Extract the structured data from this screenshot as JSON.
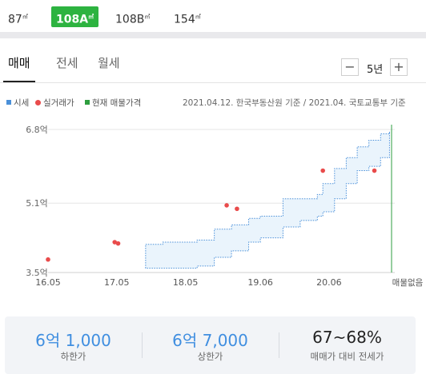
{
  "size_tabs": [
    {
      "label": "87",
      "unit": "㎡"
    },
    {
      "label": "108A",
      "unit": "㎡"
    },
    {
      "label": "108B",
      "unit": "㎡"
    },
    {
      "label": "154",
      "unit": "㎡"
    }
  ],
  "active_size": "108A",
  "deal_tabs": [
    "매매",
    "전세",
    "월세"
  ],
  "active_deal": "매매",
  "period": {
    "minus": "−",
    "value": "5년",
    "plus": "+"
  },
  "legend": {
    "estimate": "시세",
    "actual": "실거래가",
    "current": "현재 매물가격"
  },
  "source_note": "2021.04.12. 한국부동산원 기준 / 2021.04. 국토교통부 기준",
  "colors": {
    "accent_green": "#2db340",
    "estimate_blue": "#4a90d9",
    "actual_red": "#e94b4b",
    "current_green": "#2e9e3f",
    "summary_blue": "#3f8ee0"
  },
  "chart_data": {
    "type": "area",
    "x_tick_labels": [
      "16.05",
      "17.05",
      "18.05",
      "19.06",
      "20.06"
    ],
    "x_ticks": [
      2016.33,
      2017.33,
      2018.33,
      2019.42,
      2020.42
    ],
    "xlim": [
      2016.33,
      2021.33
    ],
    "y_tick_labels": [
      "6.8억",
      "5.1억",
      "3.5억"
    ],
    "y_ticks": [
      6.8,
      5.1,
      3.5
    ],
    "ylim": [
      3.5,
      6.8
    ],
    "end_label": "매물없음",
    "estimate_band": {
      "x": [
        2017.75,
        2018.0,
        2018.5,
        2018.75,
        2019.0,
        2019.25,
        2019.42,
        2019.75,
        2020.0,
        2020.25,
        2020.33,
        2020.5,
        2020.67,
        2020.83,
        2021.0,
        2021.17,
        2021.3
      ],
      "upper": [
        4.15,
        4.2,
        4.25,
        4.5,
        4.6,
        4.75,
        4.8,
        5.2,
        5.2,
        5.3,
        5.55,
        5.9,
        6.15,
        6.4,
        6.55,
        6.7,
        6.75
      ],
      "lower": [
        3.6,
        3.6,
        3.65,
        3.85,
        4.0,
        4.2,
        4.3,
        4.55,
        4.7,
        4.8,
        4.9,
        5.2,
        5.55,
        5.85,
        5.95,
        6.15,
        6.3
      ]
    },
    "actual_trades": [
      {
        "x": 2016.33,
        "y": 3.8
      },
      {
        "x": 2017.3,
        "y": 4.2
      },
      {
        "x": 2017.35,
        "y": 4.17
      },
      {
        "x": 2018.93,
        "y": 5.05
      },
      {
        "x": 2019.08,
        "y": 4.97
      },
      {
        "x": 2020.33,
        "y": 5.85
      },
      {
        "x": 2021.08,
        "y": 5.85
      }
    ],
    "current_listing_x": 2021.33
  },
  "summary": [
    {
      "value": "6억 1,000",
      "label": "하한가"
    },
    {
      "value": "6억 7,000",
      "label": "상한가"
    },
    {
      "value": "67~68%",
      "label": "매매가 대비 전세가"
    }
  ]
}
